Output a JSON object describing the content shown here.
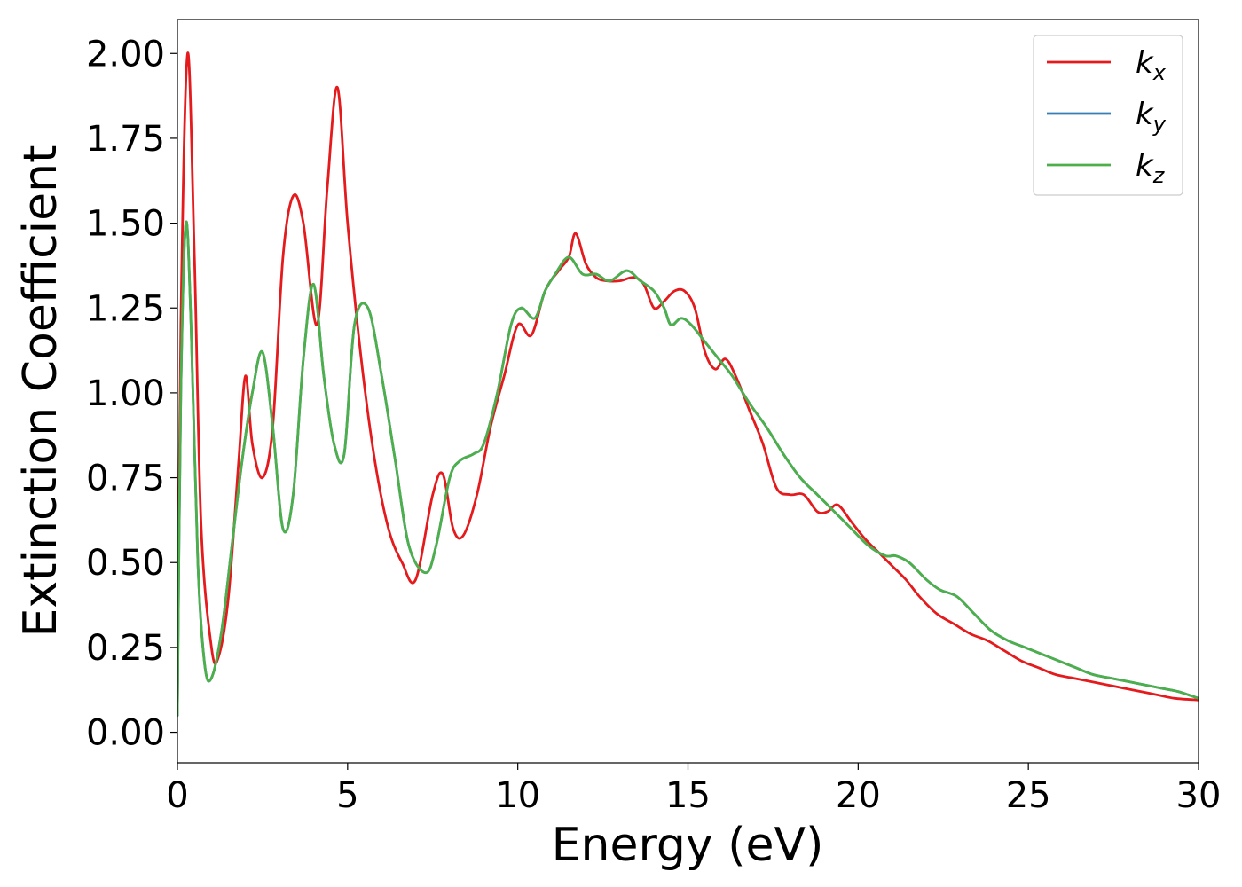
{
  "chart_data": {
    "type": "line",
    "title": "",
    "xlabel": "Energy (eV)",
    "ylabel": "Extinction Coefficient",
    "xlim": [
      0,
      30
    ],
    "ylim": [
      -0.09,
      2.1
    ],
    "xticks": [
      "0",
      "5",
      "10",
      "15",
      "20",
      "25",
      "30"
    ],
    "xtick_values": [
      0,
      5,
      10,
      15,
      20,
      25,
      30
    ],
    "yticks": [
      "0.00",
      "0.25",
      "0.50",
      "0.75",
      "1.00",
      "1.25",
      "1.50",
      "1.75",
      "2.00"
    ],
    "ytick_values": [
      0,
      0.25,
      0.5,
      0.75,
      1.0,
      1.25,
      1.5,
      1.75,
      2.0
    ],
    "grid": false,
    "legend_position": "top-right",
    "series": [
      {
        "name": "k_x",
        "base": "k",
        "sub": "x",
        "color": "#e41a1c",
        "x": [
          0,
          0.1,
          0.3,
          0.5,
          0.7,
          1.0,
          1.2,
          1.5,
          1.8,
          2.0,
          2.2,
          2.5,
          2.8,
          3.1,
          3.4,
          3.7,
          4.1,
          4.4,
          4.7,
          5.0,
          5.4,
          5.8,
          6.2,
          6.6,
          7.0,
          7.5,
          7.8,
          8.1,
          8.4,
          8.8,
          9.2,
          9.6,
          10.0,
          10.4,
          10.8,
          11.2,
          11.5,
          11.7,
          12.0,
          12.3,
          12.6,
          13.0,
          13.4,
          13.7,
          14.0,
          14.3,
          14.6,
          14.9,
          15.2,
          15.5,
          15.8,
          16.1,
          16.4,
          16.8,
          17.2,
          17.6,
          18.0,
          18.4,
          18.8,
          19.1,
          19.4,
          19.8,
          20.2,
          20.6,
          21.0,
          21.4,
          21.8,
          22.3,
          22.8,
          23.3,
          23.8,
          24.3,
          24.8,
          25.3,
          25.8,
          26.3,
          26.8,
          27.3,
          27.8,
          28.3,
          28.8,
          29.3,
          30.0
        ],
        "y": [
          0.05,
          1.2,
          2.0,
          1.4,
          0.6,
          0.25,
          0.22,
          0.4,
          0.8,
          1.05,
          0.85,
          0.75,
          0.9,
          1.4,
          1.58,
          1.5,
          1.2,
          1.6,
          1.9,
          1.5,
          1.1,
          0.8,
          0.6,
          0.5,
          0.45,
          0.7,
          0.76,
          0.6,
          0.58,
          0.7,
          0.9,
          1.05,
          1.2,
          1.17,
          1.3,
          1.36,
          1.4,
          1.47,
          1.38,
          1.34,
          1.33,
          1.33,
          1.34,
          1.32,
          1.25,
          1.27,
          1.3,
          1.3,
          1.25,
          1.12,
          1.07,
          1.1,
          1.05,
          0.95,
          0.85,
          0.72,
          0.7,
          0.7,
          0.65,
          0.65,
          0.67,
          0.62,
          0.57,
          0.53,
          0.49,
          0.45,
          0.4,
          0.35,
          0.32,
          0.29,
          0.27,
          0.24,
          0.21,
          0.19,
          0.17,
          0.16,
          0.15,
          0.14,
          0.13,
          0.12,
          0.11,
          0.1,
          0.095
        ]
      },
      {
        "name": "k_y",
        "base": "k",
        "sub": "y",
        "color": "#377eb8",
        "x": [
          0,
          0.1,
          0.25,
          0.4,
          0.6,
          0.8,
          1.0,
          1.3,
          1.6,
          1.9,
          2.2,
          2.5,
          2.8,
          3.1,
          3.4,
          3.7,
          4.0,
          4.3,
          4.6,
          4.9,
          5.2,
          5.6,
          6.0,
          6.4,
          6.8,
          7.3,
          7.6,
          8.0,
          8.3,
          8.7,
          9.0,
          9.4,
          9.8,
          10.1,
          10.5,
          10.8,
          11.1,
          11.5,
          11.9,
          12.3,
          12.7,
          13.2,
          13.6,
          14.0,
          14.3,
          14.5,
          14.8,
          15.1,
          15.5,
          15.9,
          16.3,
          16.8,
          17.3,
          17.8,
          18.3,
          18.8,
          19.3,
          19.8,
          20.3,
          20.8,
          21.1,
          21.5,
          22.0,
          22.4,
          22.9,
          23.4,
          23.9,
          24.4,
          24.9,
          25.4,
          25.9,
          26.4,
          26.9,
          27.4,
          27.9,
          28.4,
          28.9,
          29.4,
          30.0
        ],
        "y": [
          0.05,
          1.0,
          1.5,
          1.2,
          0.5,
          0.2,
          0.16,
          0.3,
          0.55,
          0.8,
          1.0,
          1.12,
          0.9,
          0.6,
          0.7,
          1.1,
          1.32,
          1.05,
          0.85,
          0.82,
          1.2,
          1.25,
          1.05,
          0.8,
          0.55,
          0.47,
          0.55,
          0.75,
          0.8,
          0.82,
          0.85,
          1.0,
          1.2,
          1.25,
          1.22,
          1.3,
          1.35,
          1.4,
          1.35,
          1.35,
          1.33,
          1.36,
          1.33,
          1.3,
          1.25,
          1.2,
          1.22,
          1.2,
          1.15,
          1.1,
          1.05,
          0.97,
          0.9,
          0.82,
          0.75,
          0.7,
          0.65,
          0.6,
          0.55,
          0.52,
          0.52,
          0.5,
          0.45,
          0.42,
          0.4,
          0.35,
          0.3,
          0.27,
          0.25,
          0.23,
          0.21,
          0.19,
          0.17,
          0.16,
          0.15,
          0.14,
          0.13,
          0.12,
          0.1
        ]
      },
      {
        "name": "k_z",
        "base": "k",
        "sub": "z",
        "color": "#4daf4a",
        "x": [
          0,
          0.1,
          0.25,
          0.4,
          0.6,
          0.8,
          1.0,
          1.3,
          1.6,
          1.9,
          2.2,
          2.5,
          2.8,
          3.1,
          3.4,
          3.7,
          4.0,
          4.3,
          4.6,
          4.9,
          5.2,
          5.6,
          6.0,
          6.4,
          6.8,
          7.3,
          7.6,
          8.0,
          8.3,
          8.7,
          9.0,
          9.4,
          9.8,
          10.1,
          10.5,
          10.8,
          11.1,
          11.5,
          11.9,
          12.3,
          12.7,
          13.2,
          13.6,
          14.0,
          14.3,
          14.5,
          14.8,
          15.1,
          15.5,
          15.9,
          16.3,
          16.8,
          17.3,
          17.8,
          18.3,
          18.8,
          19.3,
          19.8,
          20.3,
          20.8,
          21.1,
          21.5,
          22.0,
          22.4,
          22.9,
          23.4,
          23.9,
          24.4,
          24.9,
          25.4,
          25.9,
          26.4,
          26.9,
          27.4,
          27.9,
          28.4,
          28.9,
          29.4,
          30.0
        ],
        "y": [
          0.05,
          1.0,
          1.5,
          1.2,
          0.5,
          0.2,
          0.16,
          0.3,
          0.55,
          0.8,
          1.0,
          1.12,
          0.9,
          0.6,
          0.7,
          1.1,
          1.32,
          1.05,
          0.85,
          0.82,
          1.2,
          1.25,
          1.05,
          0.8,
          0.55,
          0.47,
          0.55,
          0.75,
          0.8,
          0.82,
          0.85,
          1.0,
          1.2,
          1.25,
          1.22,
          1.3,
          1.35,
          1.4,
          1.35,
          1.35,
          1.33,
          1.36,
          1.33,
          1.3,
          1.25,
          1.2,
          1.22,
          1.2,
          1.15,
          1.1,
          1.05,
          0.97,
          0.9,
          0.82,
          0.75,
          0.7,
          0.65,
          0.6,
          0.55,
          0.52,
          0.52,
          0.5,
          0.45,
          0.42,
          0.4,
          0.35,
          0.3,
          0.27,
          0.25,
          0.23,
          0.21,
          0.19,
          0.17,
          0.16,
          0.15,
          0.14,
          0.13,
          0.12,
          0.1
        ]
      }
    ]
  }
}
